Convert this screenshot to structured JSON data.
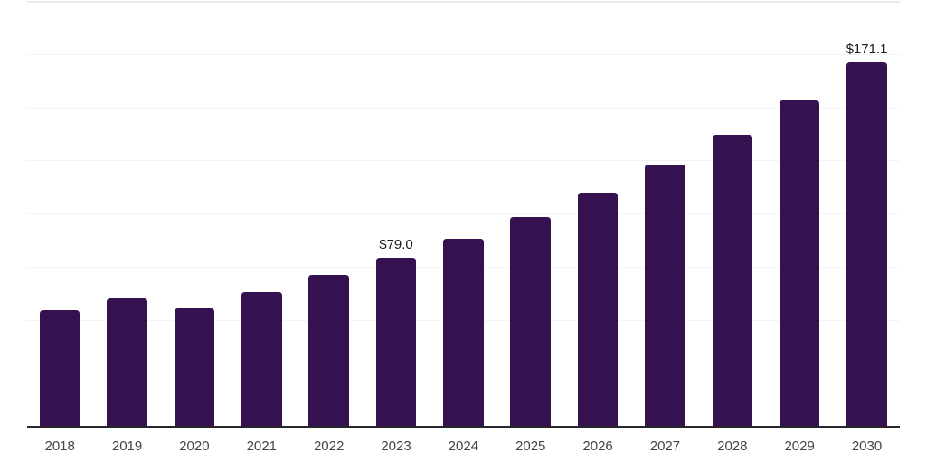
{
  "chart_data": {
    "type": "bar",
    "title": "",
    "xlabel": "",
    "ylabel": "",
    "categories": [
      "2018",
      "2019",
      "2020",
      "2021",
      "2022",
      "2023",
      "2024",
      "2025",
      "2026",
      "2027",
      "2028",
      "2029",
      "2030"
    ],
    "values": [
      54.5,
      60.0,
      55.4,
      63.1,
      70.9,
      79.0,
      88.2,
      98.5,
      110.0,
      122.8,
      137.1,
      153.1,
      171.1
    ],
    "data_labels": [
      {
        "index": 5,
        "text": "$79.0"
      },
      {
        "index": 12,
        "text": "$171.1"
      }
    ],
    "ylim": [
      0,
      200
    ],
    "y_axis_tick_labels_visible": false,
    "gridlines": "horizontal, 8 divisions (every 25 units)",
    "legend": "none",
    "colors": {
      "bar": "#36114f",
      "axis_line": "#26262b",
      "gridline": "#f4f4f6",
      "top_gridline": "#eaeaee",
      "tick_label": "#43434a",
      "data_label": "#1a1a1d",
      "background": "#ffffff"
    }
  }
}
